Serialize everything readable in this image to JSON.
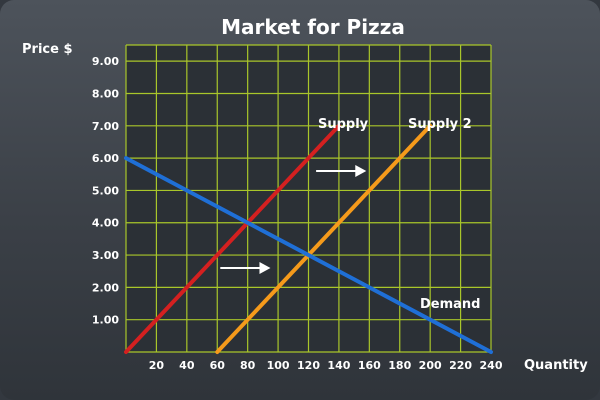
{
  "chart_data": {
    "type": "line",
    "title": "Market for Pizza",
    "ylabel": "Price $",
    "xlabel": "Quantity",
    "xlim": [
      0,
      240
    ],
    "ylim": [
      0,
      9.5
    ],
    "grid": true,
    "x_ticks": [
      "20",
      "40",
      "60",
      "80",
      "100",
      "120",
      "140",
      "160",
      "180",
      "200",
      "220",
      "240"
    ],
    "y_ticks": [
      "1.00",
      "2.00",
      "3.00",
      "4.00",
      "5.00",
      "6.00",
      "7.00",
      "8.00",
      "9.00"
    ],
    "series": [
      {
        "name": "Supply",
        "color": "#d42020",
        "points": [
          [
            0,
            0
          ],
          [
            140,
            7
          ]
        ]
      },
      {
        "name": "Supply 2",
        "color": "#f59a1b",
        "points": [
          [
            60,
            0
          ],
          [
            200,
            7
          ]
        ]
      },
      {
        "name": "Demand",
        "color": "#1f6fd6",
        "points": [
          [
            0,
            6
          ],
          [
            240,
            0
          ]
        ]
      }
    ],
    "annotations": [
      {
        "type": "arrow",
        "from": [
          62,
          2.6
        ],
        "to": [
          95,
          2.6
        ]
      },
      {
        "type": "arrow",
        "from": [
          125,
          5.6
        ],
        "to": [
          158,
          5.6
        ]
      }
    ],
    "colors": {
      "grid": "#a9c62a",
      "plot_bg": "#2b3036",
      "text": "#ffffff"
    }
  }
}
